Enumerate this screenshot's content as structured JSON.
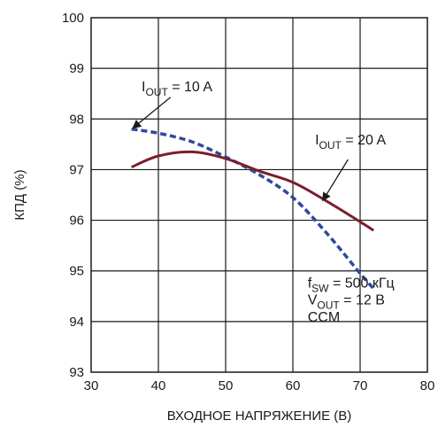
{
  "chart_data": {
    "type": "line",
    "xlabel": "ВХОДНОЕ НАПРЯЖЕНИЕ (В)",
    "ylabel": "КПД (%)",
    "xlim": [
      30,
      80
    ],
    "ylim": [
      93,
      100
    ],
    "xticks": [
      30,
      40,
      50,
      60,
      70,
      80
    ],
    "yticks": [
      93,
      94,
      95,
      96,
      97,
      98,
      99,
      100
    ],
    "grid": true,
    "series": [
      {
        "name": "I_OUT = 10 A",
        "label_main": "I",
        "label_sub": "OUT",
        "label_rest": " = 10 A",
        "style": "dashed",
        "color": "#2d4a9a",
        "x": [
          36,
          40,
          45,
          50,
          55,
          60,
          65,
          70,
          72
        ],
        "y": [
          97.8,
          97.72,
          97.55,
          97.25,
          96.9,
          96.45,
          95.75,
          94.95,
          94.65
        ]
      },
      {
        "name": "I_OUT = 20 A",
        "label_main": "I",
        "label_sub": "OUT",
        "label_rest": " = 20 A",
        "style": "solid",
        "color": "#7a1f2e",
        "x": [
          36,
          40,
          45,
          50,
          55,
          60,
          65,
          70,
          72
        ],
        "y": [
          97.05,
          97.27,
          97.35,
          97.22,
          96.97,
          96.75,
          96.38,
          95.97,
          95.8
        ]
      }
    ],
    "conditions": [
      {
        "main": "f",
        "sub": "SW",
        "rest": " = 500 кГц"
      },
      {
        "main": "V",
        "sub": "OUT",
        "rest": " = 12 В"
      },
      {
        "main": "CCM",
        "sub": "",
        "rest": ""
      }
    ],
    "annotations": [
      {
        "series": 0,
        "text_x": 37.5,
        "text_y": 98.55,
        "arrow_from": [
          41.8,
          98.43
        ],
        "arrow_to": [
          36.3,
          97.83
        ]
      },
      {
        "series": 1,
        "text_x": 63.3,
        "text_y": 97.5,
        "arrow_from": [
          68.2,
          97.2
        ],
        "arrow_to": [
          64.5,
          96.4
        ]
      }
    ]
  }
}
